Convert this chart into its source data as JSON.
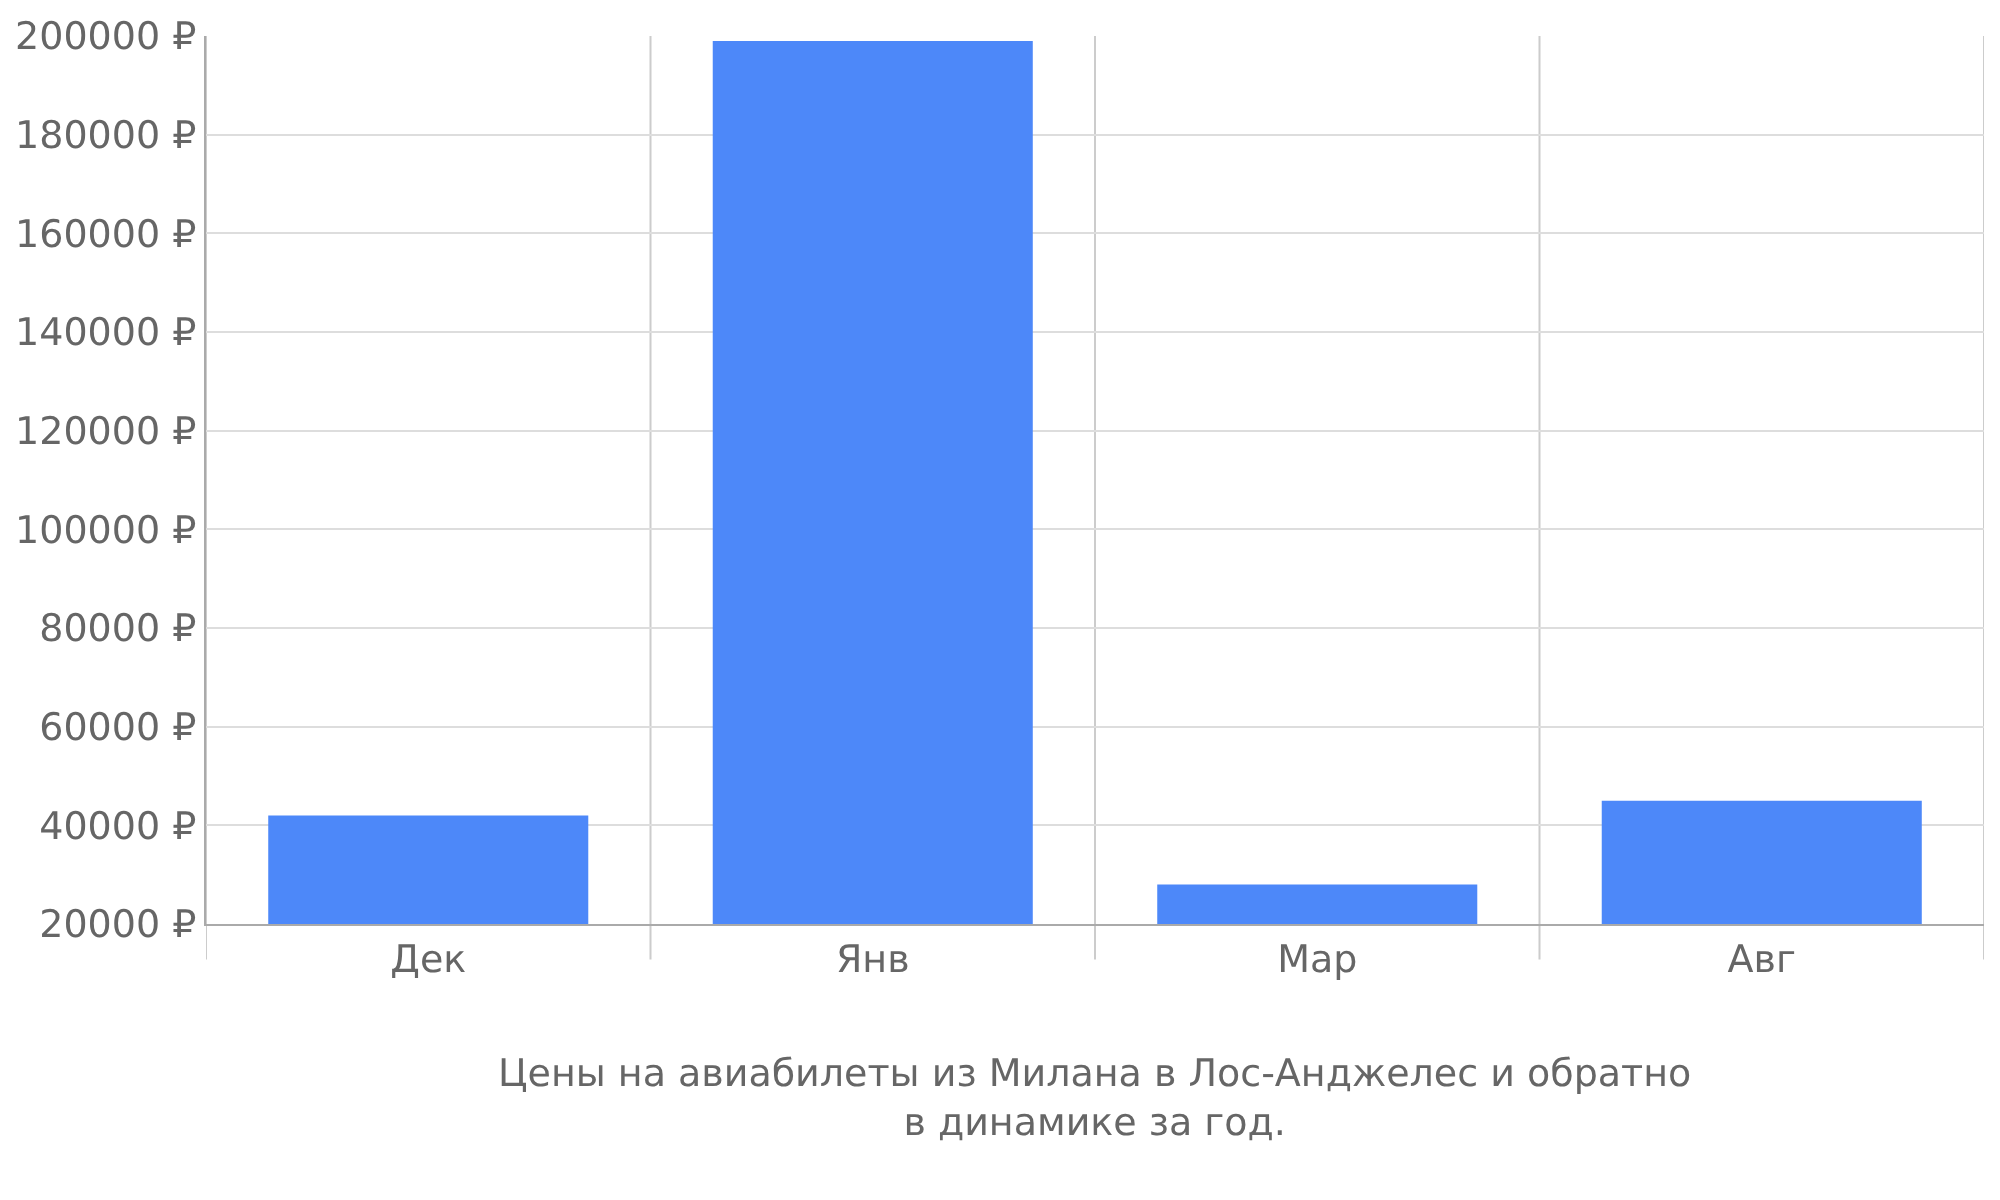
{
  "chart_data": {
    "type": "bar",
    "title": "Цены на авиабилеты из Милана в Лос-Анджелес и обратно\nв динамике за год.",
    "categories": [
      "Дек",
      "Янв",
      "Мар",
      "Авг"
    ],
    "values": [
      42000,
      199000,
      28000,
      45000
    ],
    "color": "#4d88f9",
    "ylim": [
      20000,
      200000
    ],
    "yticks": [
      {
        "value": 20000,
        "label": "20000 ₽"
      },
      {
        "value": 40000,
        "label": "40000 ₽"
      },
      {
        "value": 60000,
        "label": "60000 ₽"
      },
      {
        "value": 80000,
        "label": "80000 ₽"
      },
      {
        "value": 100000,
        "label": "100000 ₽"
      },
      {
        "value": 120000,
        "label": "120000 ₽"
      },
      {
        "value": 140000,
        "label": "140000 ₽"
      },
      {
        "value": 160000,
        "label": "160000 ₽"
      },
      {
        "value": 180000,
        "label": "180000 ₽"
      },
      {
        "value": 200000,
        "label": "200000 ₽"
      }
    ],
    "grid": true,
    "legend": false
  }
}
